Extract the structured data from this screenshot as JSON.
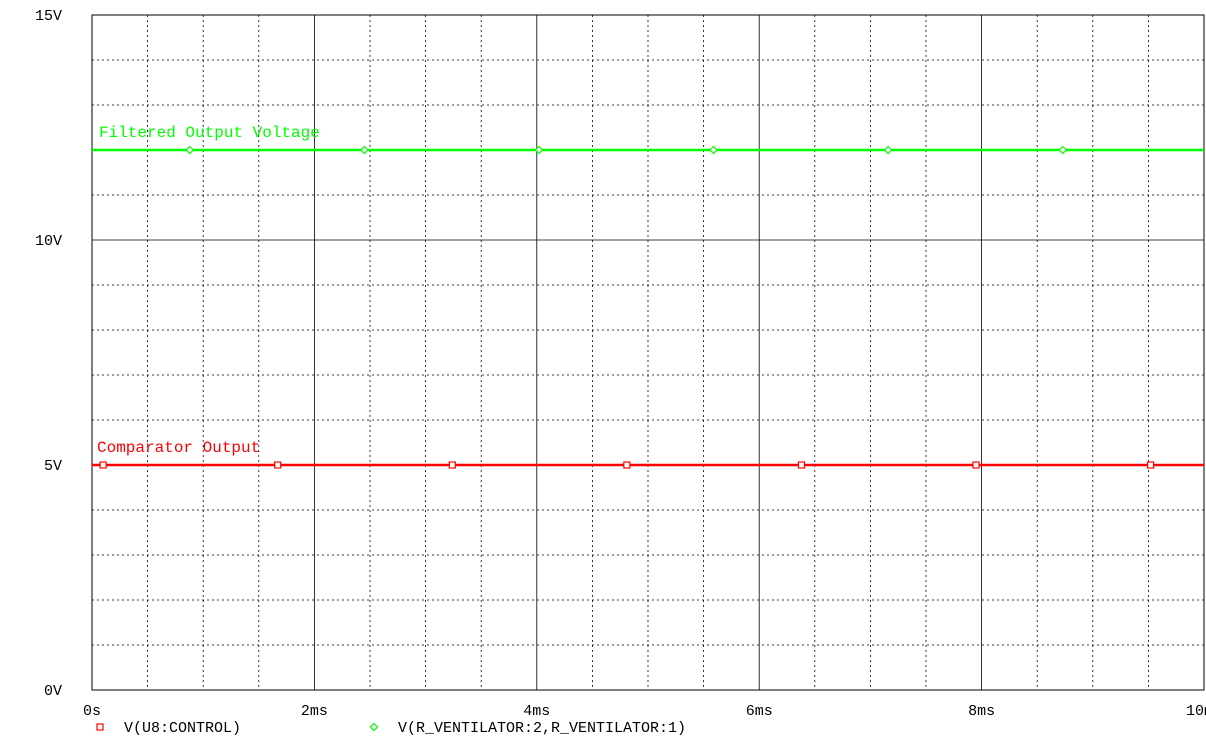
{
  "chart_data": {
    "type": "line",
    "x_unit_label": "ms",
    "xlim": [
      0,
      10
    ],
    "ylim": [
      0,
      15
    ],
    "x_ticks": [
      {
        "value": 0,
        "label": "0s"
      },
      {
        "value": 2,
        "label": "2ms"
      },
      {
        "value": 4,
        "label": "4ms"
      },
      {
        "value": 6,
        "label": "6ms"
      },
      {
        "value": 8,
        "label": "8ms"
      },
      {
        "value": 10,
        "label": "10ms"
      }
    ],
    "y_ticks": [
      {
        "value": 0,
        "label": "0V"
      },
      {
        "value": 5,
        "label": "5V"
      },
      {
        "value": 10,
        "label": "10V"
      },
      {
        "value": 15,
        "label": "15V"
      }
    ],
    "grid": true,
    "series": [
      {
        "name": "V(U8:CONTROL)",
        "annotation": "Comparator Output",
        "color": "#ff0000",
        "marker": "square",
        "x": [
          0,
          10
        ],
        "y": [
          5,
          5
        ],
        "marker_x": [
          0.1,
          1.67,
          3.24,
          4.81,
          6.38,
          7.95,
          9.52
        ]
      },
      {
        "name": "V(R_VENTILATOR:2,R_VENTILATOR:1)",
        "annotation": "Filtered Output Voltage",
        "color": "#00ff00",
        "marker": "diamond",
        "x": [
          0,
          10
        ],
        "y": [
          12,
          12
        ],
        "marker_x": [
          0.88,
          2.45,
          4.02,
          5.59,
          7.16,
          8.73
        ]
      }
    ],
    "legend_position": "bottom-left"
  }
}
